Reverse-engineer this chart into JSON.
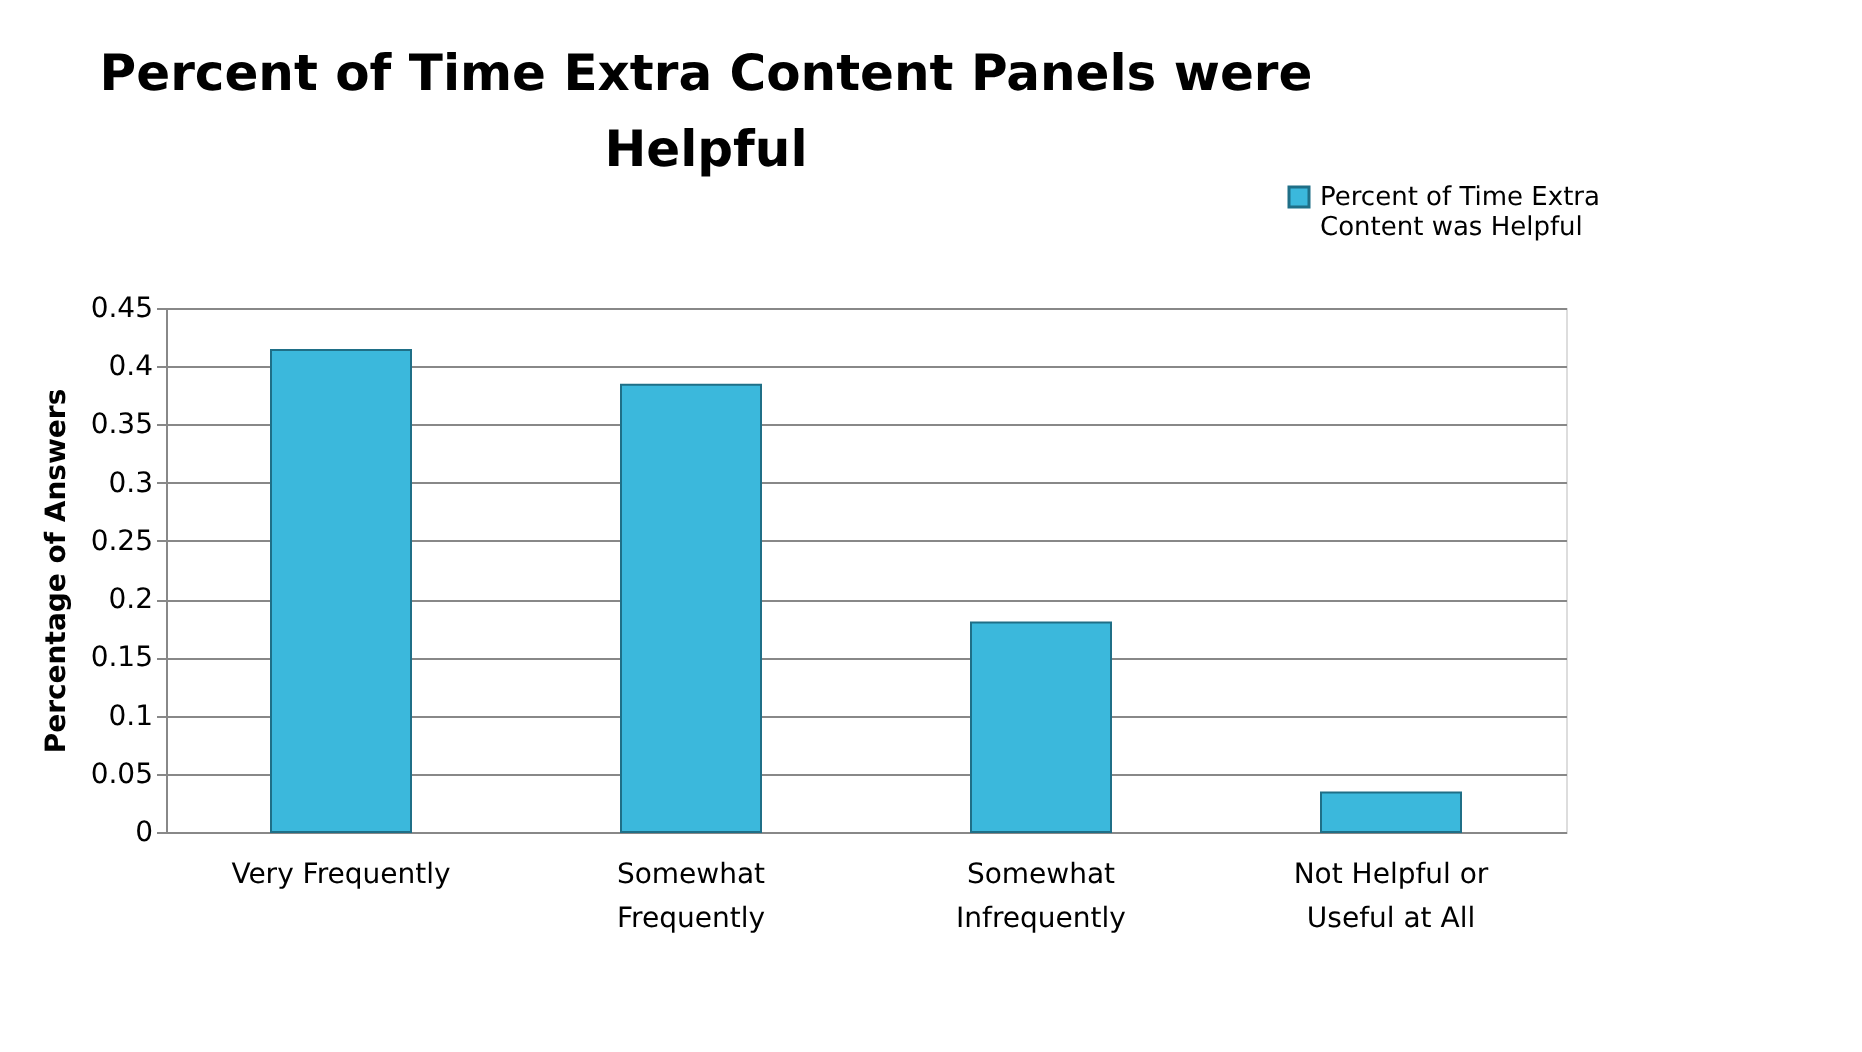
{
  "chart_data": {
    "type": "bar",
    "title": "Percent of Time Extra Content Panels were\nHelpful",
    "ylabel": "Percentage of Answers",
    "categories": [
      "Very Frequently",
      "Somewhat\nFrequently",
      "Somewhat\nInfrequently",
      "Not Helpful or\nUseful at All"
    ],
    "series": [
      {
        "name": "Percent of Time Extra\nContent was Helpful",
        "color": "#3bb8dc",
        "values": [
          0.414,
          0.384,
          0.18,
          0.034
        ]
      }
    ],
    "ylim": [
      0,
      0.45
    ],
    "yticks": [
      0,
      0.05,
      0.1,
      0.15,
      0.2,
      0.25,
      0.3,
      0.35,
      0.4,
      0.45
    ],
    "grid": "y",
    "legend": "top right"
  }
}
